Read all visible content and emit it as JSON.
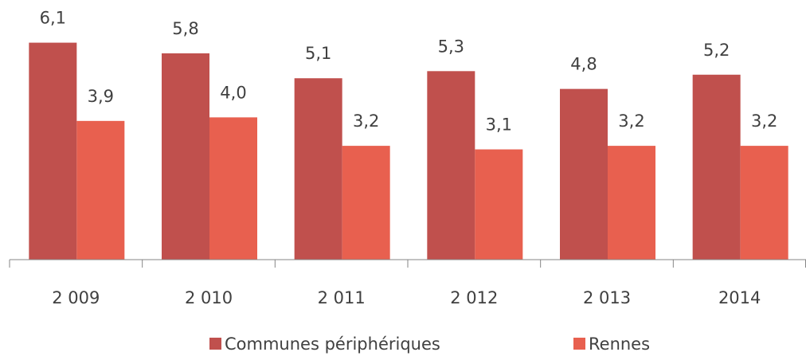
{
  "chart_data": {
    "type": "bar",
    "categories": [
      "2 009",
      "2 010",
      "2 011",
      "2 012",
      "2 013",
      "2014"
    ],
    "series": [
      {
        "name": "Communes périphériques",
        "color": "#c0504d",
        "values": [
          6.1,
          5.8,
          5.1,
          5.3,
          4.8,
          5.2
        ],
        "value_labels": [
          "6,1",
          "5,8",
          "5,1",
          "5,3",
          "4,8",
          "5,2"
        ]
      },
      {
        "name": "Rennes",
        "color": "#e8604f",
        "values": [
          3.9,
          4.0,
          3.2,
          3.1,
          3.2,
          3.2
        ],
        "value_labels": [
          "3,9",
          "4,0",
          "3,2",
          "3,1",
          "3,2",
          "3,2"
        ]
      }
    ],
    "ylim": [
      0,
      7.3
    ],
    "legend": "bottom"
  }
}
